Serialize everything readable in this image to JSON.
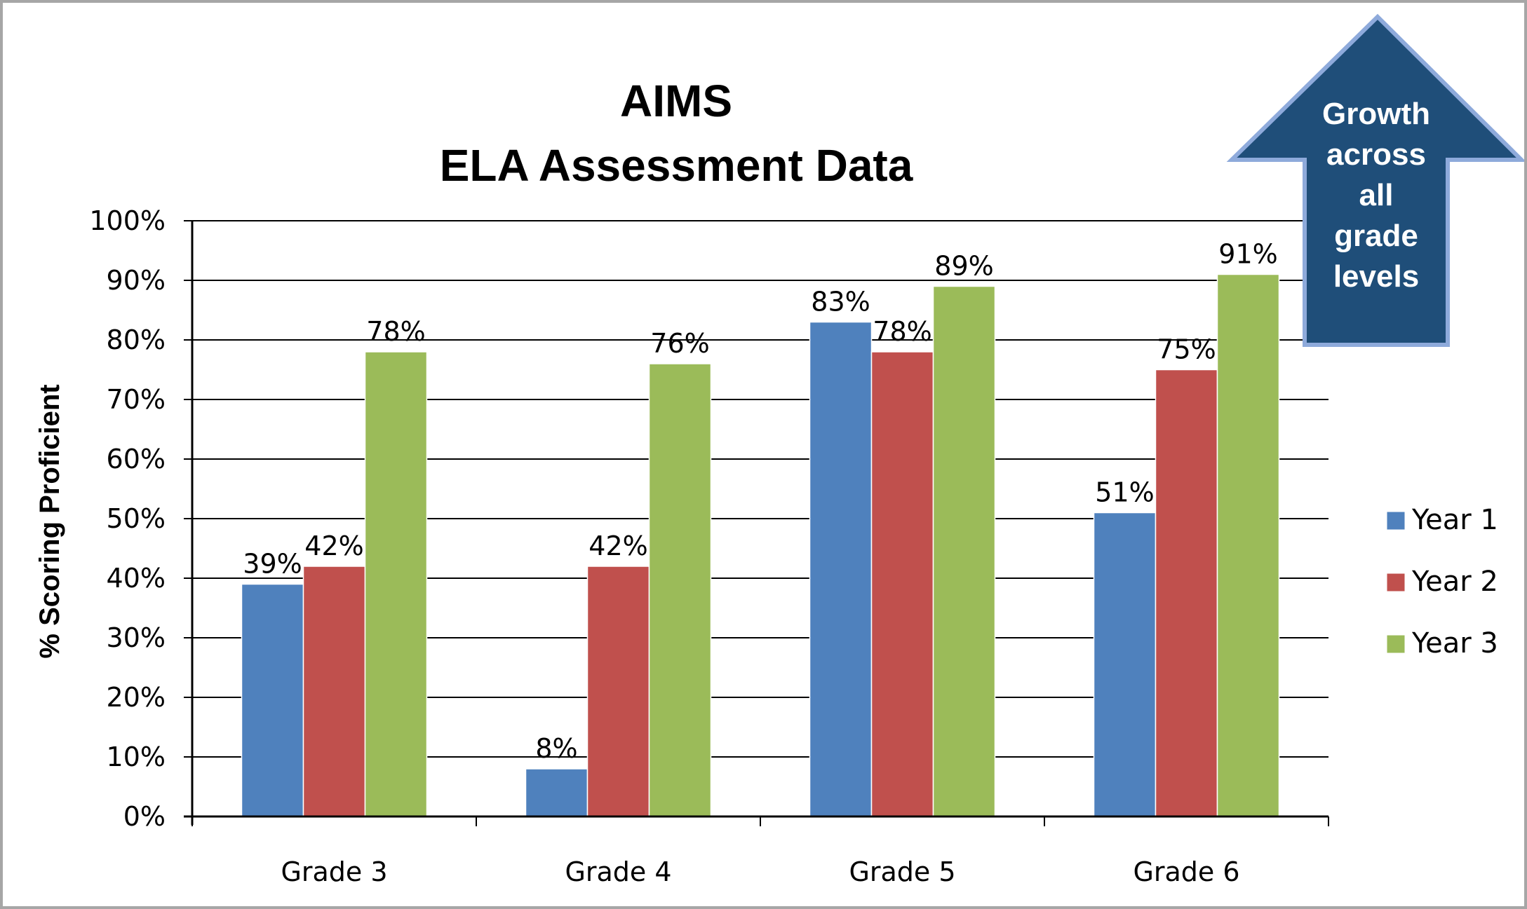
{
  "chart_data": {
    "type": "bar",
    "title": [
      "AIMS",
      "ELA Assessment Data"
    ],
    "xlabel": "",
    "ylabel": "% Scoring Proficient",
    "categories": [
      "Grade 3",
      "Grade 4",
      "Grade 5",
      "Grade 6"
    ],
    "series": [
      {
        "name": "Year 1",
        "color": "#4f81bd",
        "values": [
          39,
          8,
          83,
          51
        ],
        "labels": [
          "39%",
          "8%",
          "83%",
          "51%"
        ]
      },
      {
        "name": "Year 2",
        "color": "#c0504d",
        "values": [
          42,
          42,
          78,
          75
        ],
        "labels": [
          "42%",
          "42%",
          "78%",
          "75%"
        ]
      },
      {
        "name": "Year 3",
        "color": "#9bbb59",
        "values": [
          78,
          76,
          89,
          91
        ],
        "labels": [
          "78%",
          "76%",
          "89%",
          "91%"
        ]
      }
    ],
    "ylim": [
      0,
      100
    ],
    "yticks": [
      "0%",
      "10%",
      "20%",
      "30%",
      "40%",
      "50%",
      "60%",
      "70%",
      "80%",
      "90%",
      "100%"
    ],
    "grid": true,
    "legend_position": "right",
    "annotation": {
      "shape": "up-arrow",
      "lines": [
        "Growth",
        "across",
        "all",
        "grade",
        "levels"
      ],
      "fill": "#1f4e79",
      "outline": "#8eaadb"
    }
  }
}
